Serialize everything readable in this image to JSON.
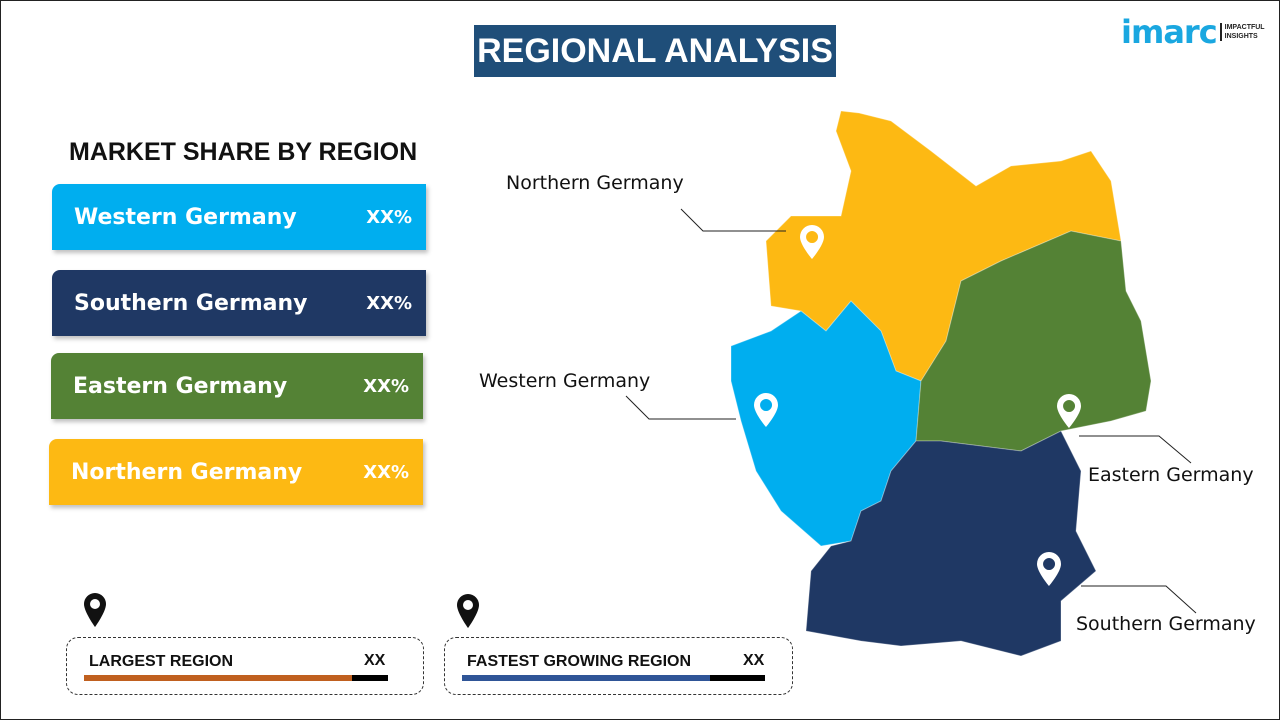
{
  "title": "REGIONAL ANALYSIS",
  "logo": {
    "word": "imarc",
    "tagline": [
      "IMPACTFUL",
      "INSIGHTS"
    ]
  },
  "subtitle": "MARKET SHARE BY REGION",
  "regions": [
    {
      "name": "Western Germany",
      "share": "XX%",
      "color": "#00aeef"
    },
    {
      "name": "Southern Germany",
      "share": "XX%",
      "color": "#1f3864"
    },
    {
      "name": "Eastern Germany",
      "share": "XX%",
      "color": "#548235"
    },
    {
      "name": "Northern Germany",
      "share": "XX%",
      "color": "#fdb913"
    }
  ],
  "map_labels": {
    "northern": "Northern Germany",
    "western": "Western Germany",
    "eastern": "Eastern Germany",
    "southern": "Southern Germany"
  },
  "cards": [
    {
      "label": "LARGEST REGION",
      "value": "XX",
      "color": "#c0601f",
      "fill_percent": 88
    },
    {
      "label": "FASTEST GROWING REGION",
      "value": "XX",
      "color": "#2f5597",
      "fill_percent": 82
    }
  ]
}
